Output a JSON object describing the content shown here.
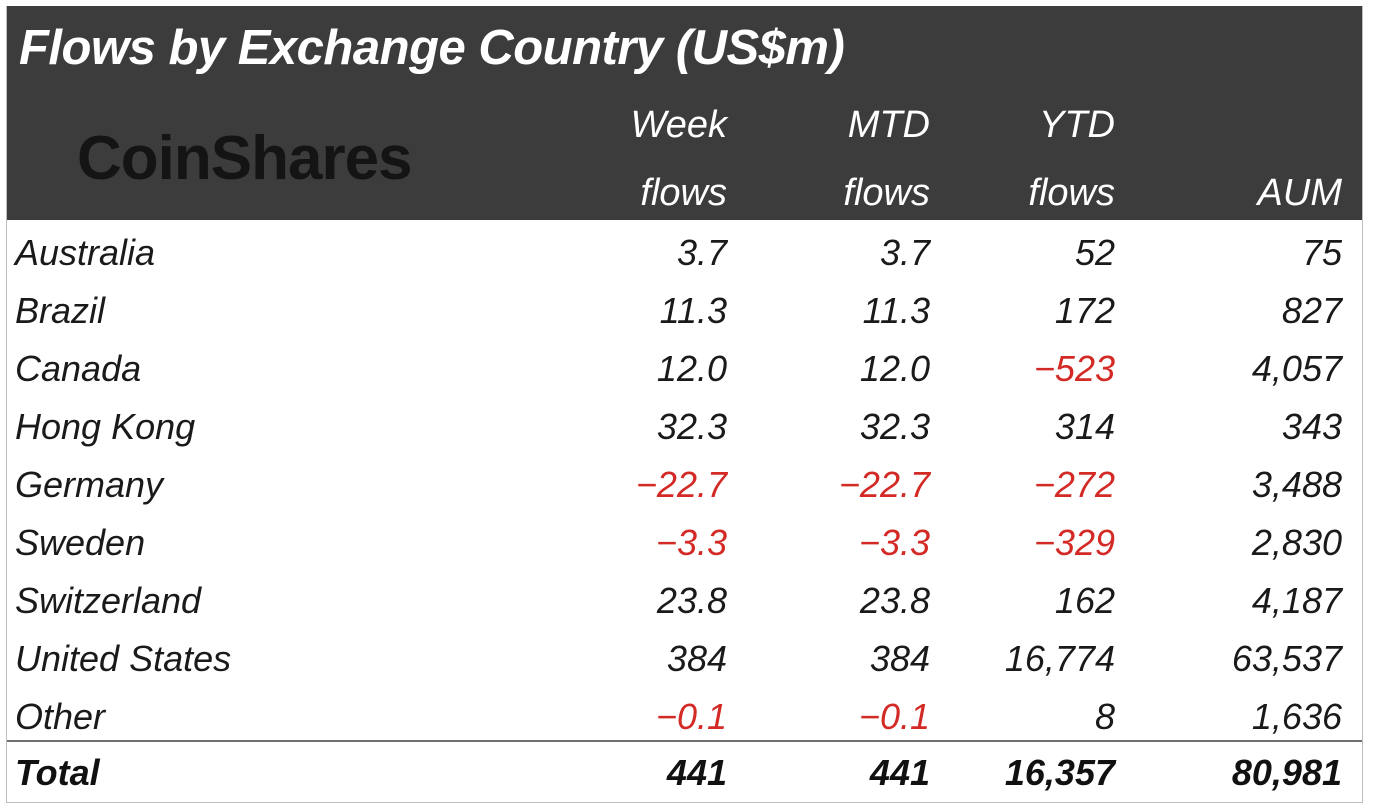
{
  "title": "Flows by Exchange Country (US$m)",
  "brand": "CoinShares",
  "colors": {
    "header_bg": "#3c3c3c",
    "header_text": "#ffffff",
    "negative": "#d32a26",
    "body_text": "#1a1a1a"
  },
  "chart_data": {
    "type": "table",
    "title": "Flows by Exchange Country (US$m)",
    "columns": [
      {
        "top": "Week",
        "bottom": "flows"
      },
      {
        "top": "MTD",
        "bottom": "flows"
      },
      {
        "top": "YTD",
        "bottom": "flows"
      },
      {
        "top": "",
        "bottom": "AUM"
      }
    ],
    "rows": [
      {
        "country": "Australia",
        "week": "3.7",
        "mtd": "3.7",
        "ytd": "52",
        "aum": "75"
      },
      {
        "country": "Brazil",
        "week": "11.3",
        "mtd": "11.3",
        "ytd": "172",
        "aum": "827"
      },
      {
        "country": "Canada",
        "week": "12.0",
        "mtd": "12.0",
        "ytd": "-523",
        "aum": "4,057"
      },
      {
        "country": "Hong Kong",
        "week": "32.3",
        "mtd": "32.3",
        "ytd": "314",
        "aum": "343"
      },
      {
        "country": "Germany",
        "week": "-22.7",
        "mtd": "-22.7",
        "ytd": "-272",
        "aum": "3,488"
      },
      {
        "country": "Sweden",
        "week": "-3.3",
        "mtd": "-3.3",
        "ytd": "-329",
        "aum": "2,830"
      },
      {
        "country": "Switzerland",
        "week": "23.8",
        "mtd": "23.8",
        "ytd": "162",
        "aum": "4,187"
      },
      {
        "country": "United States",
        "week": "384",
        "mtd": "384",
        "ytd": "16,774",
        "aum": "63,537"
      },
      {
        "country": "Other",
        "week": "-0.1",
        "mtd": "-0.1",
        "ytd": "8",
        "aum": "1,636"
      }
    ],
    "total": {
      "label": "Total",
      "week": "441",
      "mtd": "441",
      "ytd": "16,357",
      "aum": "80,981"
    }
  }
}
